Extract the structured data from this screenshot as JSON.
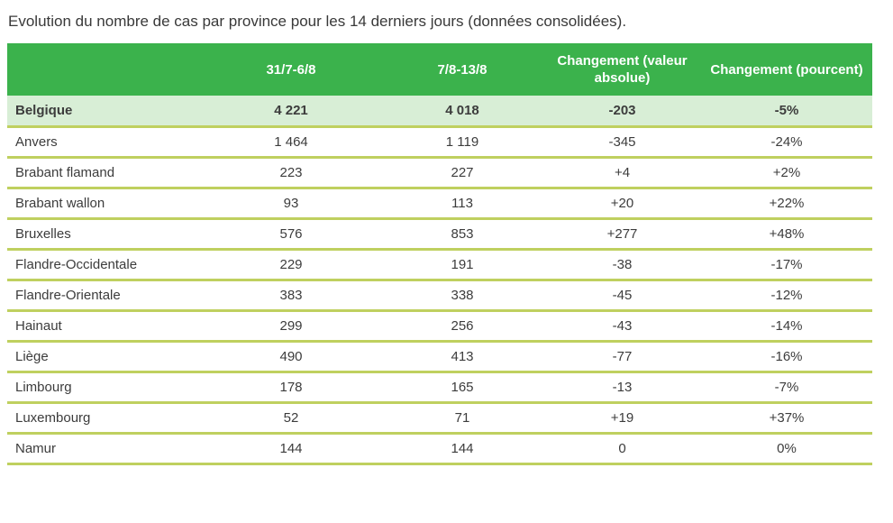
{
  "title": "Evolution du nombre de cas par province pour les 14 derniers jours (données consolidées).",
  "colors": {
    "header_bg": "#3bb24c",
    "header_text": "#ffffff",
    "total_row_bg": "#d8eed6",
    "row_divider": "#bfd05f",
    "body_text": "#3c3c3c"
  },
  "table": {
    "headers": [
      "",
      "31/7-6/8",
      "7/8-13/8",
      "Changement (valeur absolue)",
      "Changement (pourcent)"
    ],
    "rows": [
      {
        "name": "Belgique",
        "values": [
          "4 221",
          "4 018",
          "-203",
          "-5%"
        ],
        "emphasis": true
      },
      {
        "name": "Anvers",
        "values": [
          "1 464",
          "1 119",
          "-345",
          "-24%"
        ],
        "emphasis": false
      },
      {
        "name": "Brabant flamand",
        "values": [
          "223",
          "227",
          "+4",
          "+2%"
        ],
        "emphasis": false
      },
      {
        "name": "Brabant wallon",
        "values": [
          "93",
          "113",
          "+20",
          "+22%"
        ],
        "emphasis": false
      },
      {
        "name": "Bruxelles",
        "values": [
          "576",
          "853",
          "+277",
          "+48%"
        ],
        "emphasis": false
      },
      {
        "name": "Flandre-Occidentale",
        "values": [
          "229",
          "191",
          "-38",
          "-17%"
        ],
        "emphasis": false
      },
      {
        "name": "Flandre-Orientale",
        "values": [
          "383",
          "338",
          "-45",
          "-12%"
        ],
        "emphasis": false
      },
      {
        "name": "Hainaut",
        "values": [
          "299",
          "256",
          "-43",
          "-14%"
        ],
        "emphasis": false
      },
      {
        "name": "Liège",
        "values": [
          "490",
          "413",
          "-77",
          "-16%"
        ],
        "emphasis": false
      },
      {
        "name": "Limbourg",
        "values": [
          "178",
          "165",
          "-13",
          "-7%"
        ],
        "emphasis": false
      },
      {
        "name": "Luxembourg",
        "values": [
          "52",
          "71",
          "+19",
          "+37%"
        ],
        "emphasis": false
      },
      {
        "name": "Namur",
        "values": [
          "144",
          "144",
          "0",
          "0%"
        ],
        "emphasis": false
      }
    ]
  }
}
